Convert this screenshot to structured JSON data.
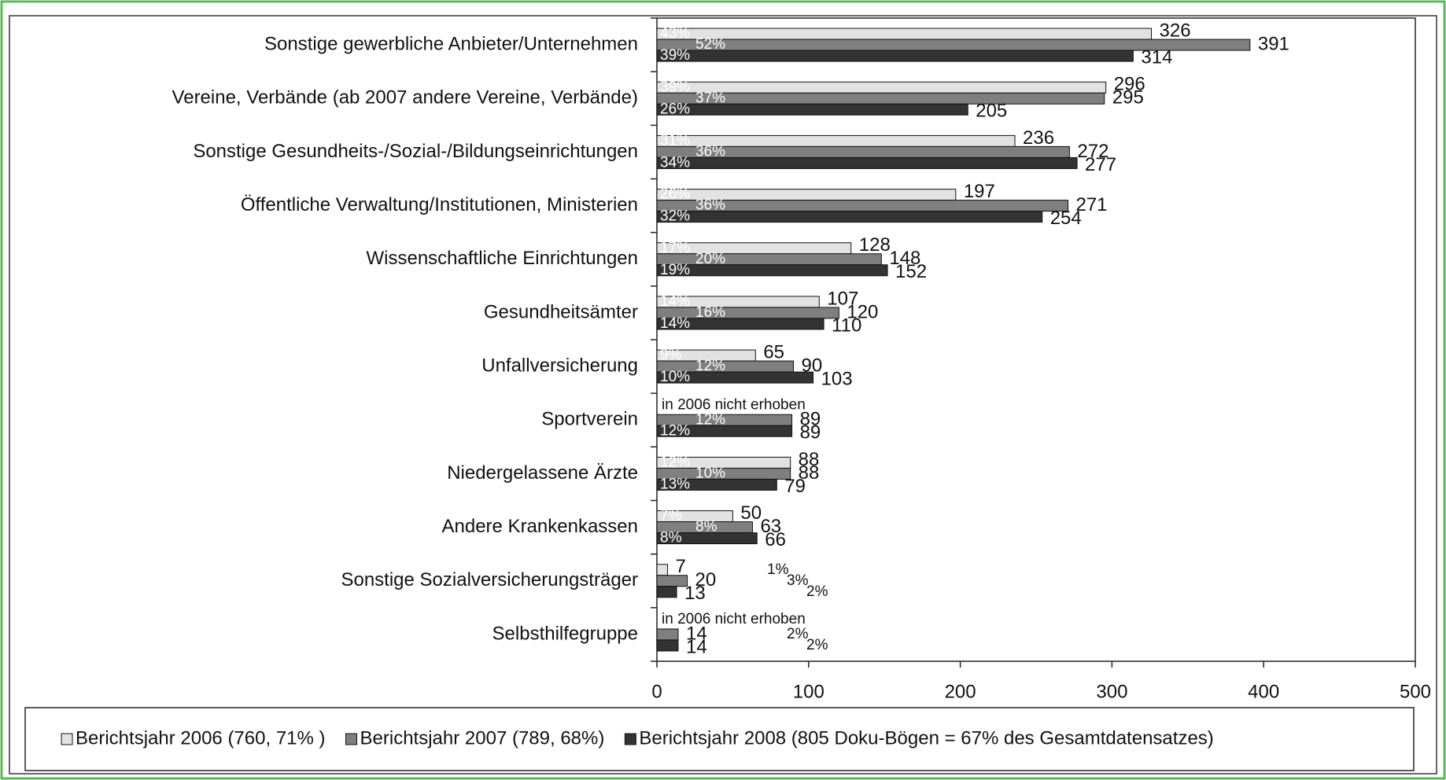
{
  "chart_data": {
    "type": "hbar",
    "categories": [
      "Sonstige gewerbliche Anbieter/Unternehmen",
      "Vereine, Verbände (ab 2007 andere Vereine, Verbände)",
      "Sonstige Gesundheits-/Sozial-/Bildungseinrichtungen",
      "Öffentliche Verwaltung/Institutionen, Ministerien",
      "Wissenschaftliche Einrichtungen",
      "Gesundheitsämter",
      "Unfallversicherung",
      "Sportverein",
      "Niedergelassene Ärzte",
      "Andere Krankenkassen",
      "Sonstige Sozialversicherungsträger",
      "Selbsthilfegruppe"
    ],
    "series": [
      {
        "name": "Berichtsjahr 2006 (760, 71% )",
        "color": "#e2e2e2",
        "values": [
          326,
          296,
          236,
          197,
          128,
          107,
          65,
          null,
          88,
          50,
          7,
          null
        ],
        "shares": [
          "43%",
          "39%",
          "31%",
          "26%",
          "17%",
          "14%",
          "9%",
          null,
          "12%",
          "7%",
          "1%",
          null
        ],
        "missing_note": "in 2006 nicht erhoben"
      },
      {
        "name": "Berichtsjahr 2007 (789, 68%)",
        "color": "#7f7f7f",
        "values": [
          391,
          295,
          272,
          271,
          148,
          120,
          90,
          89,
          88,
          63,
          20,
          14
        ],
        "shares": [
          "52%",
          "37%",
          "36%",
          "36%",
          "20%",
          "16%",
          "12%",
          "12%",
          "10%",
          "8%",
          "3%",
          "2%"
        ]
      },
      {
        "name": "Berichtsjahr 2008 (805 Doku-Bögen = 67% des Gesamtdatensatzes)",
        "color": "#333333",
        "values": [
          314,
          205,
          277,
          254,
          152,
          110,
          103,
          89,
          79,
          66,
          13,
          14
        ],
        "shares": [
          "39%",
          "26%",
          "34%",
          "32%",
          "19%",
          "14%",
          "10%",
          "12%",
          "13%",
          "8%",
          "2%",
          "2%"
        ]
      }
    ],
    "xlim": [
      0,
      500
    ],
    "xticks": [
      0,
      100,
      200,
      300,
      400,
      500
    ],
    "legend": "bottom"
  }
}
